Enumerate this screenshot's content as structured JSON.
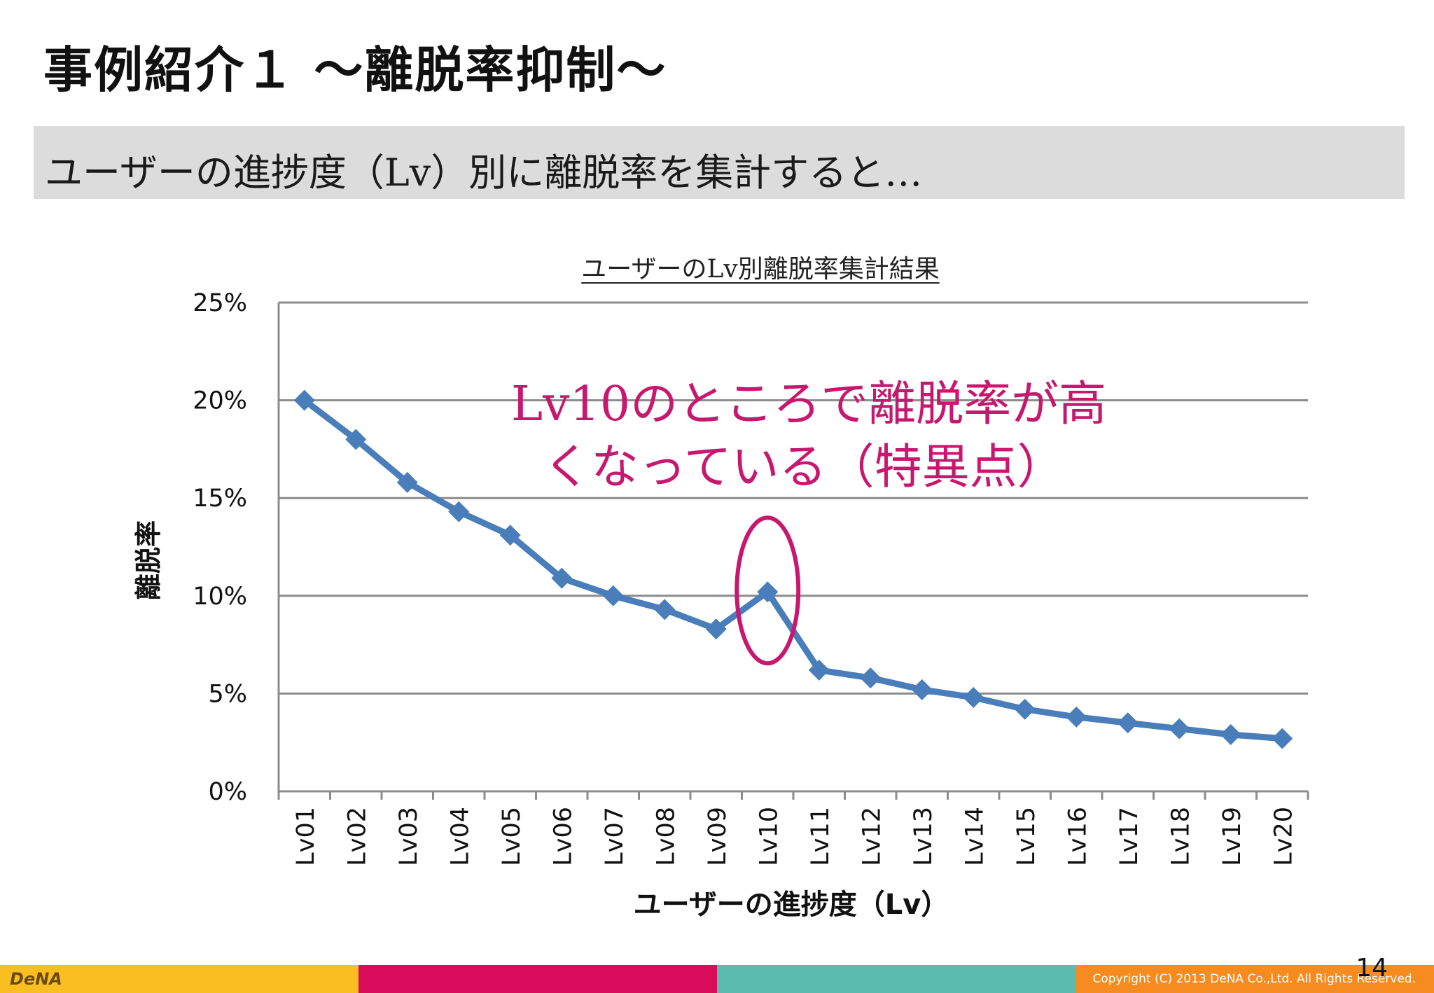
{
  "slide": {
    "title": "事例紹介１ ～離脱率抑制～",
    "subtitle": "ユーザーの進捗度（Lv）別に離脱率を集計すると…",
    "page_number": "14"
  },
  "footer": {
    "logo": "DeNA",
    "copyright": "Copyright (C) 2013 DeNA Co.,Ltd. All Rights Reserved.",
    "colors": [
      "#f9bf22",
      "#d80c5a",
      "#5bbcae",
      "#f68b1f"
    ]
  },
  "colors": {
    "series": "#4a7ebb",
    "annotation": "#c8176e",
    "grid": "#8c8c8c"
  },
  "chart_data": {
    "type": "line",
    "title": "ユーザーのLv別離脱率集計結果",
    "xlabel": "ユーザーの進捗度（Lv）",
    "ylabel": "離脱率",
    "categories": [
      "Lv01",
      "Lv02",
      "Lv03",
      "Lv04",
      "Lv05",
      "Lv06",
      "Lv07",
      "Lv08",
      "Lv09",
      "Lv10",
      "Lv11",
      "Lv12",
      "Lv13",
      "Lv14",
      "Lv15",
      "Lv16",
      "Lv17",
      "Lv18",
      "Lv19",
      "Lv20"
    ],
    "series": [
      {
        "values": [
          20.0,
          18.0,
          15.8,
          14.3,
          13.1,
          10.9,
          10.0,
          9.3,
          8.3,
          10.2,
          6.2,
          5.8,
          5.2,
          4.8,
          4.2,
          3.8,
          3.5,
          3.2,
          2.9,
          2.7
        ],
        "marker": "diamond"
      }
    ],
    "ylim": [
      0,
      25
    ],
    "y_ticks": [
      "0%",
      "5%",
      "10%",
      "15%",
      "20%",
      "25%"
    ],
    "y_tick_values": [
      0,
      5,
      10,
      15,
      20,
      25
    ],
    "grid": true,
    "annotations": [
      {
        "text_lines": [
          "Lv10のところで離脱率が高",
          "くなっている（特異点）"
        ],
        "highlight_category": "Lv10",
        "highlight_shape": "ellipse"
      }
    ]
  }
}
